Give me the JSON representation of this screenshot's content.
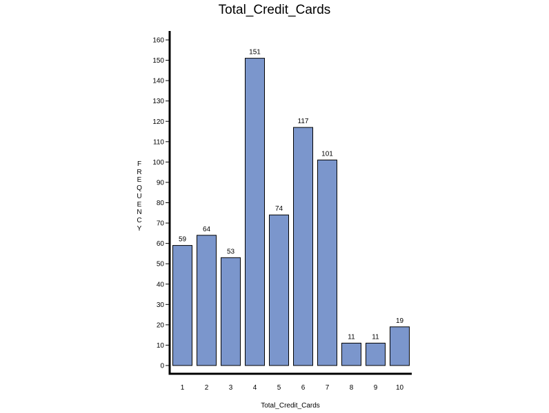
{
  "chart_data": {
    "type": "bar",
    "title": "Total_Credit_Cards",
    "xlabel": "Total_Credit_Cards",
    "ylabel": "FREQUENCY",
    "categories": [
      "1",
      "2",
      "3",
      "4",
      "5",
      "6",
      "7",
      "8",
      "9",
      "10"
    ],
    "values": [
      59,
      64,
      53,
      151,
      74,
      117,
      101,
      11,
      11,
      19
    ],
    "ylim": [
      0,
      160
    ],
    "yticks": [
      0,
      10,
      20,
      30,
      40,
      50,
      60,
      70,
      80,
      90,
      100,
      110,
      120,
      130,
      140,
      150,
      160
    ],
    "grid": false,
    "legend": "none",
    "bar_color": "#7b96cc",
    "bar_edge_color": "#000000"
  }
}
